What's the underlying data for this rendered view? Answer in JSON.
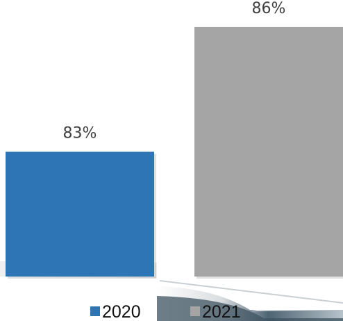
{
  "chart_data": {
    "type": "bar",
    "categories": [
      "2020",
      "2021"
    ],
    "values": [
      83,
      86
    ],
    "labels": [
      "83%",
      "86%"
    ],
    "ylim": [
      80,
      86.65
    ],
    "legend": "bottom",
    "grid": false,
    "colors": [
      "#2e75b6",
      "#a5a5a5"
    ]
  }
}
